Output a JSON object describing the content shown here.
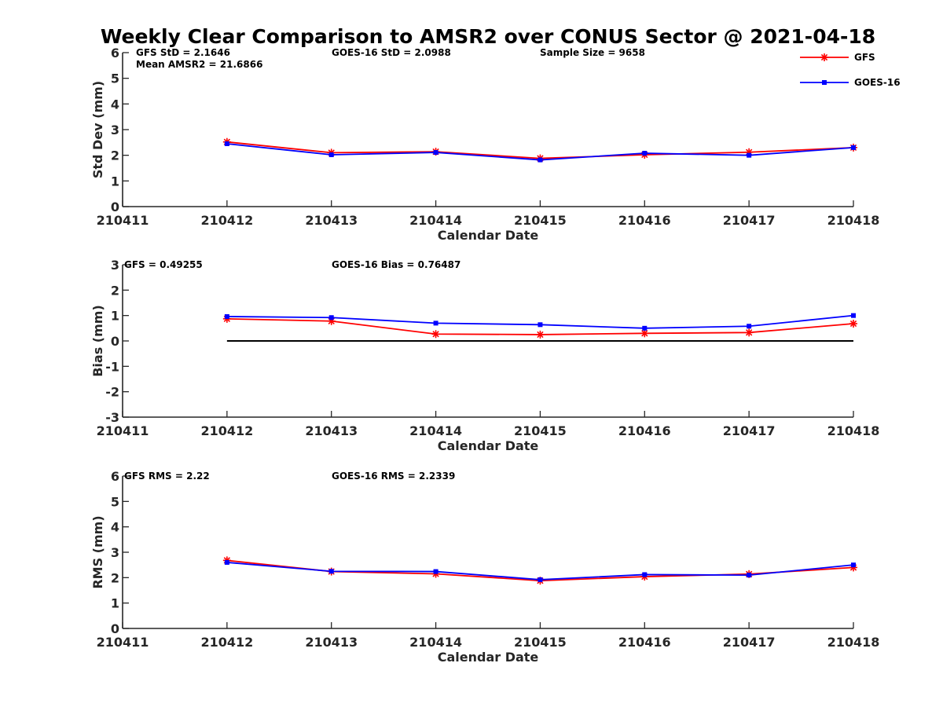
{
  "chart_data": {
    "type": "line",
    "title": "Weekly Clear Comparison to AMSR2 over CONUS Sector @ 2021-04-18",
    "x_ticks": [
      "210411",
      "210412",
      "210413",
      "210414",
      "210415",
      "210416",
      "210417",
      "210418"
    ],
    "x_values": [
      "210412",
      "210413",
      "210414",
      "210415",
      "210416",
      "210417",
      "210418"
    ],
    "legend": {
      "placement": "top-right",
      "entries": [
        {
          "name": "GFS",
          "color": "#ff0000",
          "marker": "asterisk"
        },
        {
          "name": "GOES-16",
          "color": "#0000ff",
          "marker": "square"
        }
      ]
    },
    "panels": [
      {
        "id": "stddev",
        "xlabel": "Calendar Date",
        "ylabel": "Std Dev (mm)",
        "ylim": [
          0,
          6
        ],
        "yticks": [
          0,
          1,
          2,
          3,
          4,
          5,
          6
        ],
        "annotations": [
          {
            "text": "GFS StD = 2.1646",
            "slot": "left"
          },
          {
            "text": "Mean AMSR2 = 21.6866",
            "slot": "left-second"
          },
          {
            "text": "GOES-16 StD = 2.0988",
            "slot": "middle"
          },
          {
            "text": "Sample Size = 9658",
            "slot": "right"
          }
        ],
        "series": [
          {
            "name": "GFS",
            "values": [
              2.52,
              2.1,
              2.14,
              1.88,
              2.02,
              2.12,
              2.3
            ]
          },
          {
            "name": "GOES-16",
            "values": [
              2.45,
              2.02,
              2.11,
              1.82,
              2.08,
              2.0,
              2.3
            ]
          }
        ]
      },
      {
        "id": "bias",
        "xlabel": "Calendar Date",
        "ylabel": "Bias (mm)",
        "ylim": [
          -3,
          3
        ],
        "yticks": [
          -3,
          -2,
          -1,
          0,
          1,
          2,
          3
        ],
        "zero_line": true,
        "annotations": [
          {
            "text": "GFS = 0.49255",
            "slot": "left"
          },
          {
            "text": "GOES-16 Bias  = 0.76487",
            "slot": "middle"
          }
        ],
        "series": [
          {
            "name": "GFS",
            "values": [
              0.87,
              0.78,
              0.27,
              0.25,
              0.3,
              0.33,
              0.68
            ]
          },
          {
            "name": "GOES-16",
            "values": [
              0.96,
              0.92,
              0.7,
              0.64,
              0.5,
              0.58,
              1.0
            ]
          }
        ]
      },
      {
        "id": "rms",
        "xlabel": "Calendar Date",
        "ylabel": "RMS (mm)",
        "ylim": [
          0,
          6
        ],
        "yticks": [
          0,
          1,
          2,
          3,
          4,
          5,
          6
        ],
        "annotations": [
          {
            "text": "GFS RMS = 2.22",
            "slot": "left"
          },
          {
            "text": "GOES-16 RMS = 2.2339",
            "slot": "middle"
          }
        ],
        "series": [
          {
            "name": "GFS",
            "values": [
              2.68,
              2.24,
              2.15,
              1.88,
              2.04,
              2.14,
              2.4
            ]
          },
          {
            "name": "GOES-16",
            "values": [
              2.6,
              2.25,
              2.24,
              1.92,
              2.12,
              2.1,
              2.5
            ]
          }
        ]
      }
    ]
  }
}
